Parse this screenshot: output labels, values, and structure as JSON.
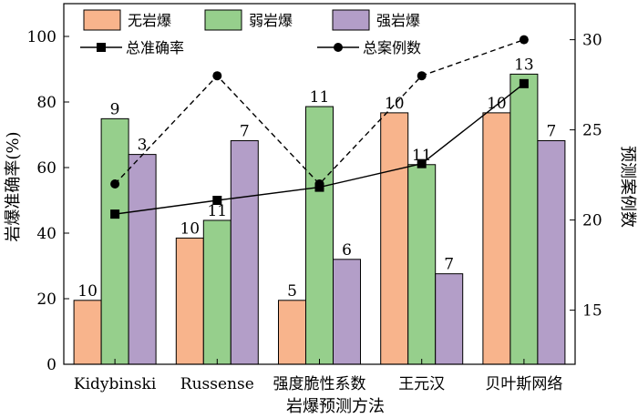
{
  "chart_data": {
    "type": "bar",
    "categories": [
      "Kidybinski",
      "Russense",
      "强度脆性系数",
      "王元汉",
      "贝叶斯网络"
    ],
    "xlabel": "岩爆预测方法",
    "ylabel": "岩爆准确率(%)",
    "y2label": "预测案例数",
    "ylim": [
      0,
      110
    ],
    "y2lim": [
      12,
      32
    ],
    "yticks": [
      0,
      20,
      40,
      60,
      80,
      100
    ],
    "y2ticks": [
      15,
      20,
      25,
      30
    ],
    "grid": false,
    "legend_position": "top",
    "series": [
      {
        "name": "无岩爆",
        "color": "#f8b48c",
        "values": [
          19.5,
          38.5,
          19.5,
          76.7,
          76.7
        ],
        "labels": [
          "10",
          "10",
          "5",
          "10",
          "10"
        ]
      },
      {
        "name": "弱岩爆",
        "color": "#96cf8c",
        "values": [
          74.9,
          43.9,
          78.6,
          60.9,
          88.5
        ],
        "labels": [
          "9",
          "11",
          "11",
          "11",
          "13"
        ]
      },
      {
        "name": "强岩爆",
        "color": "#b39ec8",
        "values": [
          64.0,
          68.2,
          32.0,
          27.6,
          68.2
        ],
        "labels": [
          "3",
          "7",
          "6",
          "7",
          "7"
        ]
      }
    ],
    "lines": [
      {
        "name": "总准确率",
        "axis": "left",
        "marker": "square",
        "style": "solid",
        "values": [
          45.8,
          50.0,
          54.0,
          61.2,
          85.6
        ]
      },
      {
        "name": "总案例数",
        "axis": "right",
        "marker": "circle",
        "style": "dashed",
        "values": [
          22,
          28,
          22,
          28,
          30
        ]
      }
    ]
  }
}
